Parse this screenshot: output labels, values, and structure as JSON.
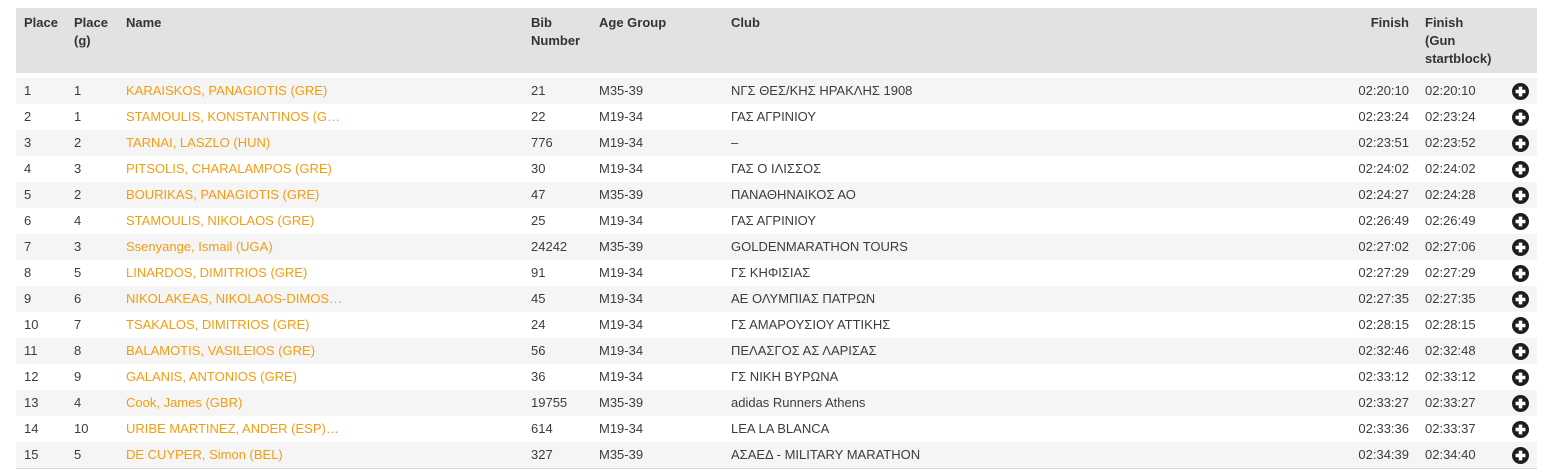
{
  "colors": {
    "accent_orange": "#F49C10",
    "header_bg": "#e2e2e2",
    "row_alt_bg": "#f5f5f5",
    "row_bg": "#ffffff",
    "body_text": "#3c3c3c",
    "header_text": "#333333",
    "plus_icon": "#1d1d1b"
  },
  "table": {
    "columns": [
      {
        "key": "place",
        "label": "Place"
      },
      {
        "key": "place_g",
        "label": "Place (g)"
      },
      {
        "key": "name",
        "label": "Name"
      },
      {
        "key": "bib",
        "label": "Bib Number"
      },
      {
        "key": "age_group",
        "label": "Age Group"
      },
      {
        "key": "club",
        "label": "Club"
      },
      {
        "key": "finish",
        "label": "Finish"
      },
      {
        "key": "finish_gun",
        "label": "Finish (Gun startblock)"
      },
      {
        "key": "expand",
        "label": ""
      }
    ],
    "rows": [
      {
        "place": "1",
        "place_g": "1",
        "name": "KARAISKOS, PANAGIOTIS (GRE)",
        "bib": "21",
        "age_group": "M35-39",
        "club": "ΝΓΣ ΘΕΣ/ΚΗΣ ΗΡΑΚΛΗΣ 1908",
        "finish": "02:20:10",
        "finish_gun": "02:20:10"
      },
      {
        "place": "2",
        "place_g": "1",
        "name": "STAMOULIS, KONSTANTINOS (G…",
        "bib": "22",
        "age_group": "M19-34",
        "club": "ΓΑΣ ΑΓΡΙΝΙΟΥ",
        "finish": "02:23:24",
        "finish_gun": "02:23:24"
      },
      {
        "place": "3",
        "place_g": "2",
        "name": "TARNAI, LASZLO (HUN)",
        "bib": "776",
        "age_group": "M19-34",
        "club": "–",
        "finish": "02:23:51",
        "finish_gun": "02:23:52"
      },
      {
        "place": "4",
        "place_g": "3",
        "name": "PITSOLIS, CHARALAMPOS (GRE)",
        "bib": "30",
        "age_group": "M19-34",
        "club": "ΓΑΣ Ο ΙΛΙΣΣΟΣ",
        "finish": "02:24:02",
        "finish_gun": "02:24:02"
      },
      {
        "place": "5",
        "place_g": "2",
        "name": "BOURIKAS, PANAGIOTIS (GRE)",
        "bib": "47",
        "age_group": "M35-39",
        "club": "ΠΑΝΑΘΗΝΑΙΚΟΣ ΑΟ",
        "finish": "02:24:27",
        "finish_gun": "02:24:28"
      },
      {
        "place": "6",
        "place_g": "4",
        "name": "STAMOULIS, NIKOLAOS (GRE)",
        "bib": "25",
        "age_group": "M19-34",
        "club": "ΓΑΣ ΑΓΡΙΝΙΟΥ",
        "finish": "02:26:49",
        "finish_gun": "02:26:49"
      },
      {
        "place": "7",
        "place_g": "3",
        "name": "Ssenyange, Ismail (UGA)",
        "bib": "24242",
        "age_group": "M35-39",
        "club": "GOLDENMARATHON TOURS",
        "finish": "02:27:02",
        "finish_gun": "02:27:06"
      },
      {
        "place": "8",
        "place_g": "5",
        "name": "LINARDOS, DIMITRIOS (GRE)",
        "bib": "91",
        "age_group": "M19-34",
        "club": "ΓΣ ΚΗΦΙΣΙΑΣ",
        "finish": "02:27:29",
        "finish_gun": "02:27:29"
      },
      {
        "place": "9",
        "place_g": "6",
        "name": "NIKOLAKEAS, NIKOLAOS-DIMOS…",
        "bib": "45",
        "age_group": "M19-34",
        "club": "ΑΕ ΟΛΥΜΠΙΑΣ ΠΑΤΡΩΝ",
        "finish": "02:27:35",
        "finish_gun": "02:27:35"
      },
      {
        "place": "10",
        "place_g": "7",
        "name": "TSAKALOS, DIMITRIOS (GRE)",
        "bib": "24",
        "age_group": "M19-34",
        "club": "ΓΣ ΑΜΑΡΟΥΣΙΟΥ ΑΤΤΙΚΗΣ",
        "finish": "02:28:15",
        "finish_gun": "02:28:15"
      },
      {
        "place": "11",
        "place_g": "8",
        "name": "BALAMOTIS, VASILEIOS (GRE)",
        "bib": "56",
        "age_group": "M19-34",
        "club": "ΠΕΛΑΣΓΟΣ ΑΣ ΛΑΡΙΣΑΣ",
        "finish": "02:32:46",
        "finish_gun": "02:32:48"
      },
      {
        "place": "12",
        "place_g": "9",
        "name": "GALANIS, ANTONIOS (GRE)",
        "bib": "36",
        "age_group": "M19-34",
        "club": "ΓΣ ΝΙΚΗ ΒΥΡΩΝΑ",
        "finish": "02:33:12",
        "finish_gun": "02:33:12"
      },
      {
        "place": "13",
        "place_g": "4",
        "name": "Cook, James (GBR)",
        "bib": "19755",
        "age_group": "M35-39",
        "club": "adidas Runners Athens",
        "finish": "02:33:27",
        "finish_gun": "02:33:27"
      },
      {
        "place": "14",
        "place_g": "10",
        "name": "URIBE MARTINEZ, ANDER (ESP)…",
        "bib": "614",
        "age_group": "M19-34",
        "club": "LEA LA BLANCA",
        "finish": "02:33:36",
        "finish_gun": "02:33:37"
      },
      {
        "place": "15",
        "place_g": "5",
        "name": "DE CUYPER, Simon (BEL)",
        "bib": "327",
        "age_group": "M35-39",
        "club": "ΑΣΑΕΔ - MILITARY MARATHON",
        "finish": "02:34:39",
        "finish_gun": "02:34:40"
      }
    ]
  }
}
